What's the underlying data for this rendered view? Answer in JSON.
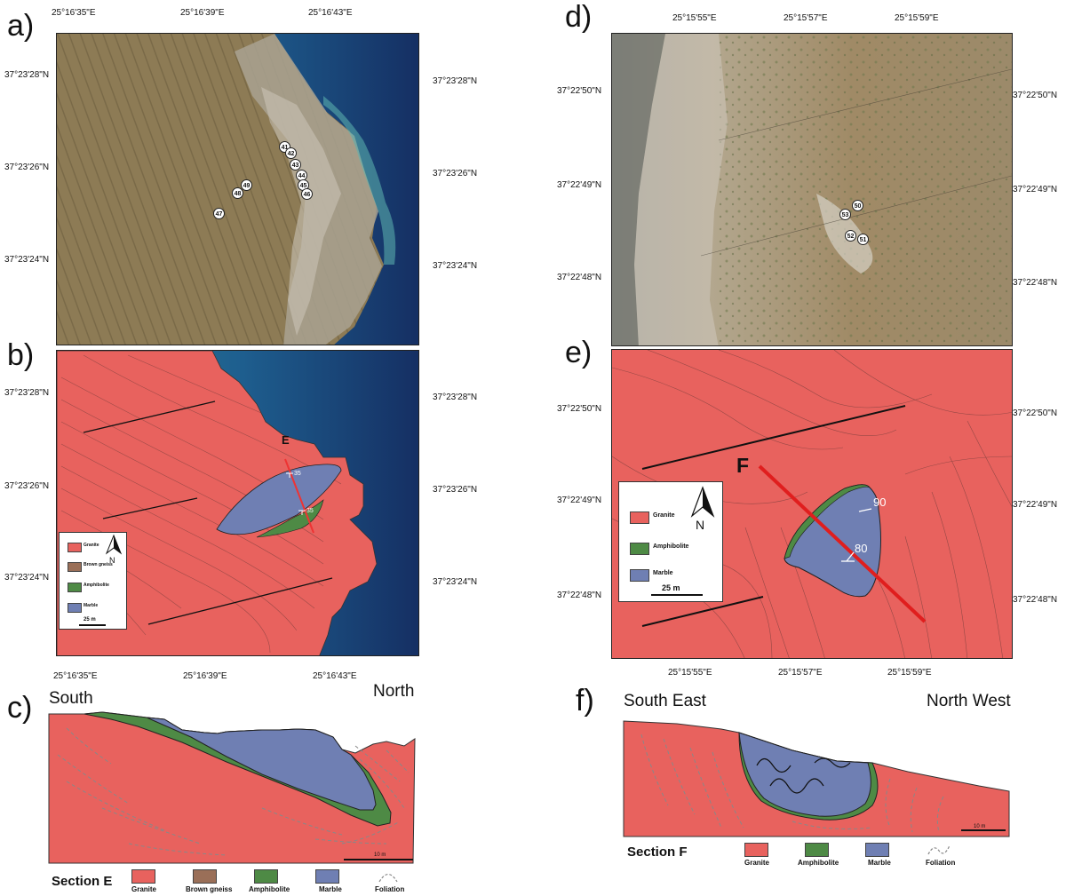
{
  "panels": {
    "a": "a)",
    "b": "b)",
    "c": "c)",
    "d": "d)",
    "e": "e)",
    "f": "f)"
  },
  "left_coords": {
    "top_lon": [
      "25°16'35\"E",
      "25°16'39\"E",
      "25°16'43\"E"
    ],
    "a_lat": [
      "37°23'28\"N",
      "37°23'26\"N",
      "37°23'24\"N"
    ],
    "b_lat": [
      "37°23'28\"N",
      "37°23'26\"N",
      "37°23'24\"N"
    ],
    "bottom_lon": [
      "25°16'35\"E",
      "25°16'39\"E",
      "25°16'43\"E"
    ]
  },
  "right_coords": {
    "top_lon": [
      "25°15'55\"E",
      "25°15'57\"E",
      "25°15'59\"E"
    ],
    "d_lat": [
      "37°22'50\"N",
      "37°22'49\"N",
      "37°22'48\"N"
    ],
    "e_lat": [
      "37°22'50\"N",
      "37°22'49\"N",
      "37°22'48\"N"
    ],
    "bottom_lon": [
      "25°15'55\"E",
      "25°15'57\"E",
      "25°15'59\"E"
    ]
  },
  "points_a": [
    "41",
    "42",
    "43",
    "44",
    "45",
    "46",
    "49",
    "48",
    "47"
  ],
  "points_d": [
    "50",
    "53",
    "52",
    "51"
  ],
  "map_b": {
    "section_letter": "E",
    "dips": [
      "35",
      "35"
    ],
    "legend": [
      "Granite",
      "Brown gneiss",
      "Amphibolite",
      "Marble"
    ],
    "north": "N",
    "scale": "25 m"
  },
  "map_e": {
    "section_letter": "F",
    "dips": [
      "90",
      "80"
    ],
    "legend": [
      "Granite",
      "Amphibolite",
      "Marble"
    ],
    "north": "N",
    "scale": "25 m"
  },
  "section_c": {
    "left_dir": "South",
    "right_dir": "North",
    "scale": "10 m",
    "title": "Section E",
    "legend": [
      "Granite",
      "Brown gneiss",
      "Amphibolite",
      "Marble",
      "Foliation"
    ]
  },
  "section_f": {
    "left_dir": "South East",
    "right_dir": "North West",
    "scale": "10 m",
    "title": "Section F",
    "legend": [
      "Granite",
      "Amphibolite",
      "Marble",
      "Foliation"
    ]
  },
  "colors": {
    "granite": "#e8625e",
    "brown_gneiss": "#9a6f58",
    "amphibolite": "#4e8a45",
    "marble": "#6f7fb3",
    "sea": "#1d5a8a"
  }
}
